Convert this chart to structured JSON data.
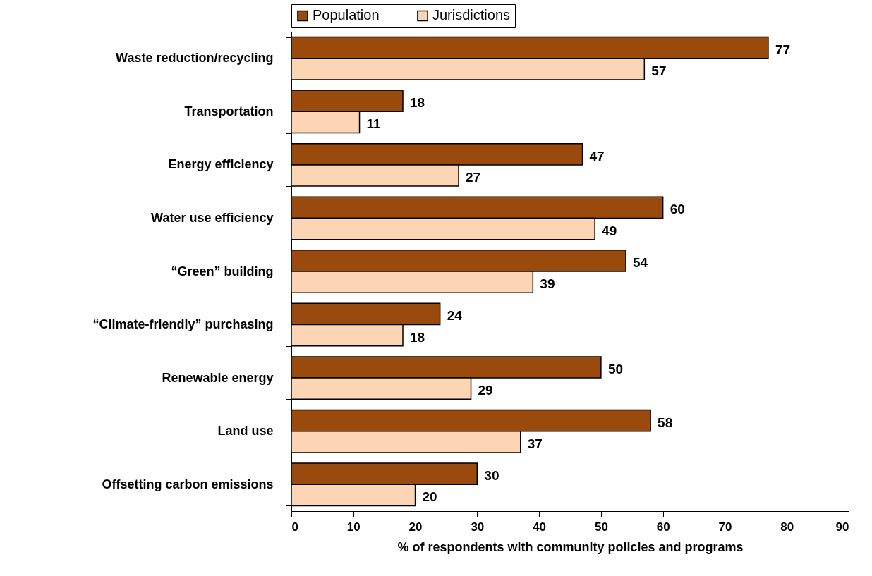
{
  "chart_data": {
    "type": "bar",
    "orientation": "horizontal",
    "xlabel": "% of respondents with community policies and programs",
    "categories": [
      "Waste reduction/recycling",
      "Transportation",
      "Energy efficiency",
      "Water use efficiency",
      "“Green” building",
      "“Climate-friendly” purchasing",
      "Renewable energy",
      "Land use",
      "Offsetting carbon emissions"
    ],
    "series": [
      {
        "name": "Population",
        "color": "#9a4a0c",
        "values": [
          77,
          18,
          47,
          60,
          54,
          24,
          50,
          58,
          30
        ]
      },
      {
        "name": "Jurisdictions",
        "color": "#fcd5b4",
        "values": [
          57,
          11,
          27,
          49,
          39,
          18,
          29,
          37,
          20
        ]
      }
    ],
    "xlim": [
      0,
      90
    ],
    "xticks": [
      0,
      10,
      20,
      30,
      40,
      50,
      60,
      70,
      80,
      90
    ],
    "data_labels": true,
    "grid": false,
    "legend": "top"
  }
}
